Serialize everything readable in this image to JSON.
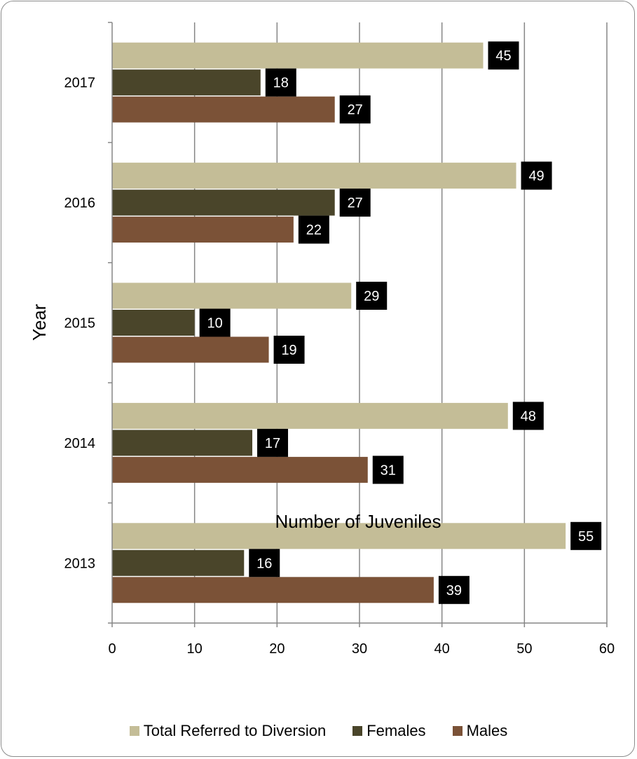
{
  "chart_data": {
    "type": "bar",
    "orientation": "horizontal",
    "categories": [
      "2013",
      "2014",
      "2015",
      "2016",
      "2017"
    ],
    "series": [
      {
        "name": "Total Referred to Diversion",
        "color": "#c4bd97",
        "values": [
          55,
          48,
          29,
          49,
          45
        ]
      },
      {
        "name": "Females",
        "color": "#4a452a",
        "values": [
          16,
          17,
          10,
          27,
          18
        ]
      },
      {
        "name": "Males",
        "color": "#7b5237",
        "values": [
          39,
          31,
          19,
          22,
          27
        ]
      }
    ],
    "xlabel": "Number of Juveniles",
    "ylabel": "Year",
    "xlim": [
      0,
      60
    ],
    "xticks": [
      "0",
      "10",
      "20",
      "30",
      "40",
      "50",
      "60"
    ],
    "grid": "vertical",
    "legend_position": "bottom",
    "data_label_background": "#000000"
  }
}
